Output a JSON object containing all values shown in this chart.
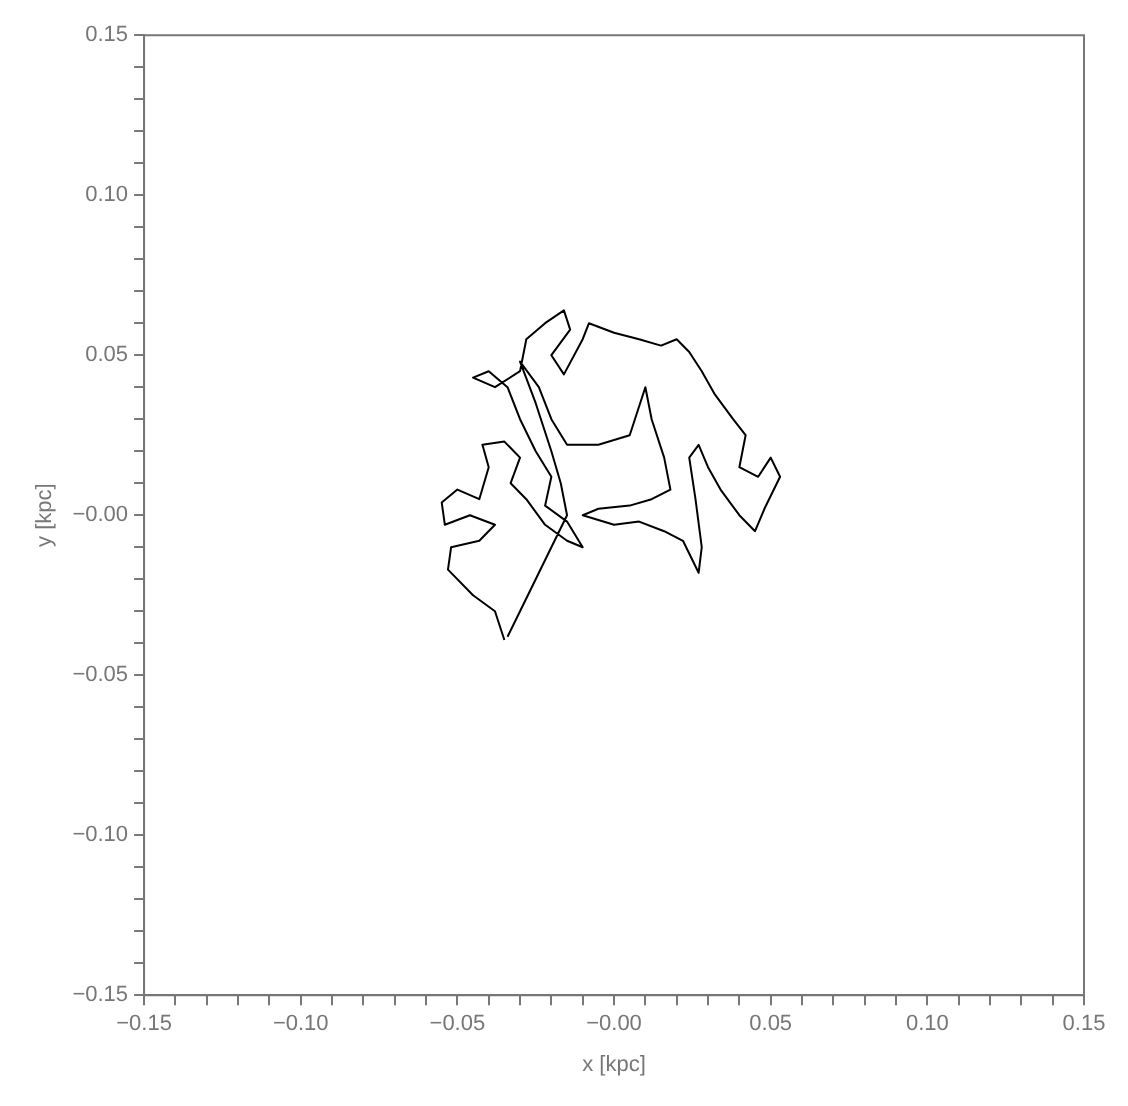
{
  "chart_data": {
    "type": "line",
    "xlabel": "x [kpc]",
    "ylabel": "y [kpc]",
    "xlim": [
      -0.15,
      0.15
    ],
    "ylim": [
      -0.15,
      0.15
    ],
    "xticks": [
      {
        "value": -0.15,
        "label": "−0.15"
      },
      {
        "value": -0.14,
        "label": null
      },
      {
        "value": -0.13,
        "label": null
      },
      {
        "value": -0.12,
        "label": null
      },
      {
        "value": -0.11,
        "label": null
      },
      {
        "value": -0.1,
        "label": "−0.10"
      },
      {
        "value": -0.09,
        "label": null
      },
      {
        "value": -0.08,
        "label": null
      },
      {
        "value": -0.07,
        "label": null
      },
      {
        "value": -0.06,
        "label": null
      },
      {
        "value": -0.05,
        "label": "−0.05"
      },
      {
        "value": -0.04,
        "label": null
      },
      {
        "value": -0.03,
        "label": null
      },
      {
        "value": -0.02,
        "label": null
      },
      {
        "value": -0.01,
        "label": null
      },
      {
        "value": 0,
        "label": "−0.00"
      },
      {
        "value": 0.01,
        "label": null
      },
      {
        "value": 0.02,
        "label": null
      },
      {
        "value": 0.03,
        "label": null
      },
      {
        "value": 0.04,
        "label": null
      },
      {
        "value": 0.05,
        "label": "0.05"
      },
      {
        "value": 0.06,
        "label": null
      },
      {
        "value": 0.07,
        "label": null
      },
      {
        "value": 0.08,
        "label": null
      },
      {
        "value": 0.09,
        "label": null
      },
      {
        "value": 0.1,
        "label": "0.10"
      },
      {
        "value": 0.11,
        "label": null
      },
      {
        "value": 0.12,
        "label": null
      },
      {
        "value": 0.13,
        "label": null
      },
      {
        "value": 0.14,
        "label": null
      },
      {
        "value": 0.15,
        "label": "0.15"
      }
    ],
    "yticks": [
      {
        "value": -0.15,
        "label": "−0.15"
      },
      {
        "value": -0.14,
        "label": null
      },
      {
        "value": -0.13,
        "label": null
      },
      {
        "value": -0.12,
        "label": null
      },
      {
        "value": -0.11,
        "label": null
      },
      {
        "value": -0.1,
        "label": "−0.10"
      },
      {
        "value": -0.09,
        "label": null
      },
      {
        "value": -0.08,
        "label": null
      },
      {
        "value": -0.07,
        "label": null
      },
      {
        "value": -0.06,
        "label": null
      },
      {
        "value": -0.05,
        "label": "−0.05"
      },
      {
        "value": -0.04,
        "label": null
      },
      {
        "value": -0.03,
        "label": null
      },
      {
        "value": -0.02,
        "label": null
      },
      {
        "value": -0.01,
        "label": null
      },
      {
        "value": 0,
        "label": "−0.00"
      },
      {
        "value": 0.01,
        "label": null
      },
      {
        "value": 0.02,
        "label": null
      },
      {
        "value": 0.03,
        "label": null
      },
      {
        "value": 0.04,
        "label": null
      },
      {
        "value": 0.05,
        "label": "0.05"
      },
      {
        "value": 0.06,
        "label": null
      },
      {
        "value": 0.07,
        "label": null
      },
      {
        "value": 0.08,
        "label": null
      },
      {
        "value": 0.09,
        "label": null
      },
      {
        "value": 0.1,
        "label": "0.10"
      },
      {
        "value": 0.11,
        "label": null
      },
      {
        "value": 0.12,
        "label": null
      },
      {
        "value": 0.13,
        "label": null
      },
      {
        "value": 0.14,
        "label": null
      },
      {
        "value": 0.15,
        "label": "0.15"
      }
    ],
    "grid": false,
    "legend": false,
    "marker": "none",
    "line_style": "solid",
    "series": [
      {
        "color": "#000000",
        "x": [
          -0.035,
          -0.038,
          -0.045,
          -0.053,
          -0.052,
          -0.043,
          -0.038,
          -0.046,
          -0.054,
          -0.055,
          -0.05,
          -0.043,
          -0.04,
          -0.042,
          -0.035,
          -0.03,
          -0.033,
          -0.028,
          -0.022,
          -0.015,
          -0.01,
          -0.015,
          -0.022,
          -0.02,
          -0.025,
          -0.03,
          -0.034,
          -0.04,
          -0.045,
          -0.038,
          -0.03,
          -0.028,
          -0.022,
          -0.016,
          -0.014,
          -0.02,
          -0.016,
          -0.01,
          -0.008,
          0,
          0.008,
          0.015,
          0.02,
          0.024,
          0.028,
          0.032,
          0.038,
          0.042,
          0.04,
          0.046,
          0.05,
          0.053,
          0.048,
          0.045,
          0.04,
          0.034,
          0.03,
          0.027,
          0.024,
          0.026,
          0.028,
          0.027,
          0.022,
          0.016,
          0.008,
          0,
          -0.01,
          -0.005,
          0.005,
          0.012,
          0.018,
          0.016,
          0.012,
          0.01,
          0.005,
          -0.005,
          -0.015,
          -0.02,
          -0.024,
          -0.03,
          -0.025,
          -0.02,
          -0.017,
          -0.015,
          -0.02,
          -0.025,
          -0.03,
          -0.034
        ],
        "values": [
          -0.039,
          -0.03,
          -0.025,
          -0.017,
          -0.01,
          -0.008,
          -0.003,
          0,
          -0.003,
          0.004,
          0.008,
          0.005,
          0.015,
          0.022,
          0.023,
          0.018,
          0.01,
          0.005,
          -0.003,
          -0.008,
          -0.01,
          -0.002,
          0.003,
          0.012,
          0.02,
          0.03,
          0.04,
          0.045,
          0.043,
          0.04,
          0.045,
          0.055,
          0.06,
          0.064,
          0.058,
          0.05,
          0.044,
          0.055,
          0.06,
          0.057,
          0.055,
          0.053,
          0.055,
          0.051,
          0.045,
          0.038,
          0.03,
          0.025,
          0.015,
          0.012,
          0.018,
          0.012,
          0.002,
          -0.005,
          0,
          0.008,
          0.015,
          0.022,
          0.018,
          0.005,
          -0.01,
          -0.018,
          -0.008,
          -0.005,
          -0.002,
          -0.003,
          0,
          0.002,
          0.003,
          0.005,
          0.008,
          0.018,
          0.03,
          0.04,
          0.025,
          0.022,
          0.022,
          0.03,
          0.04,
          0.048,
          0.035,
          0.02,
          0.01,
          0,
          -0.01,
          -0.02,
          -0.03,
          -0.038
        ]
      }
    ]
  }
}
